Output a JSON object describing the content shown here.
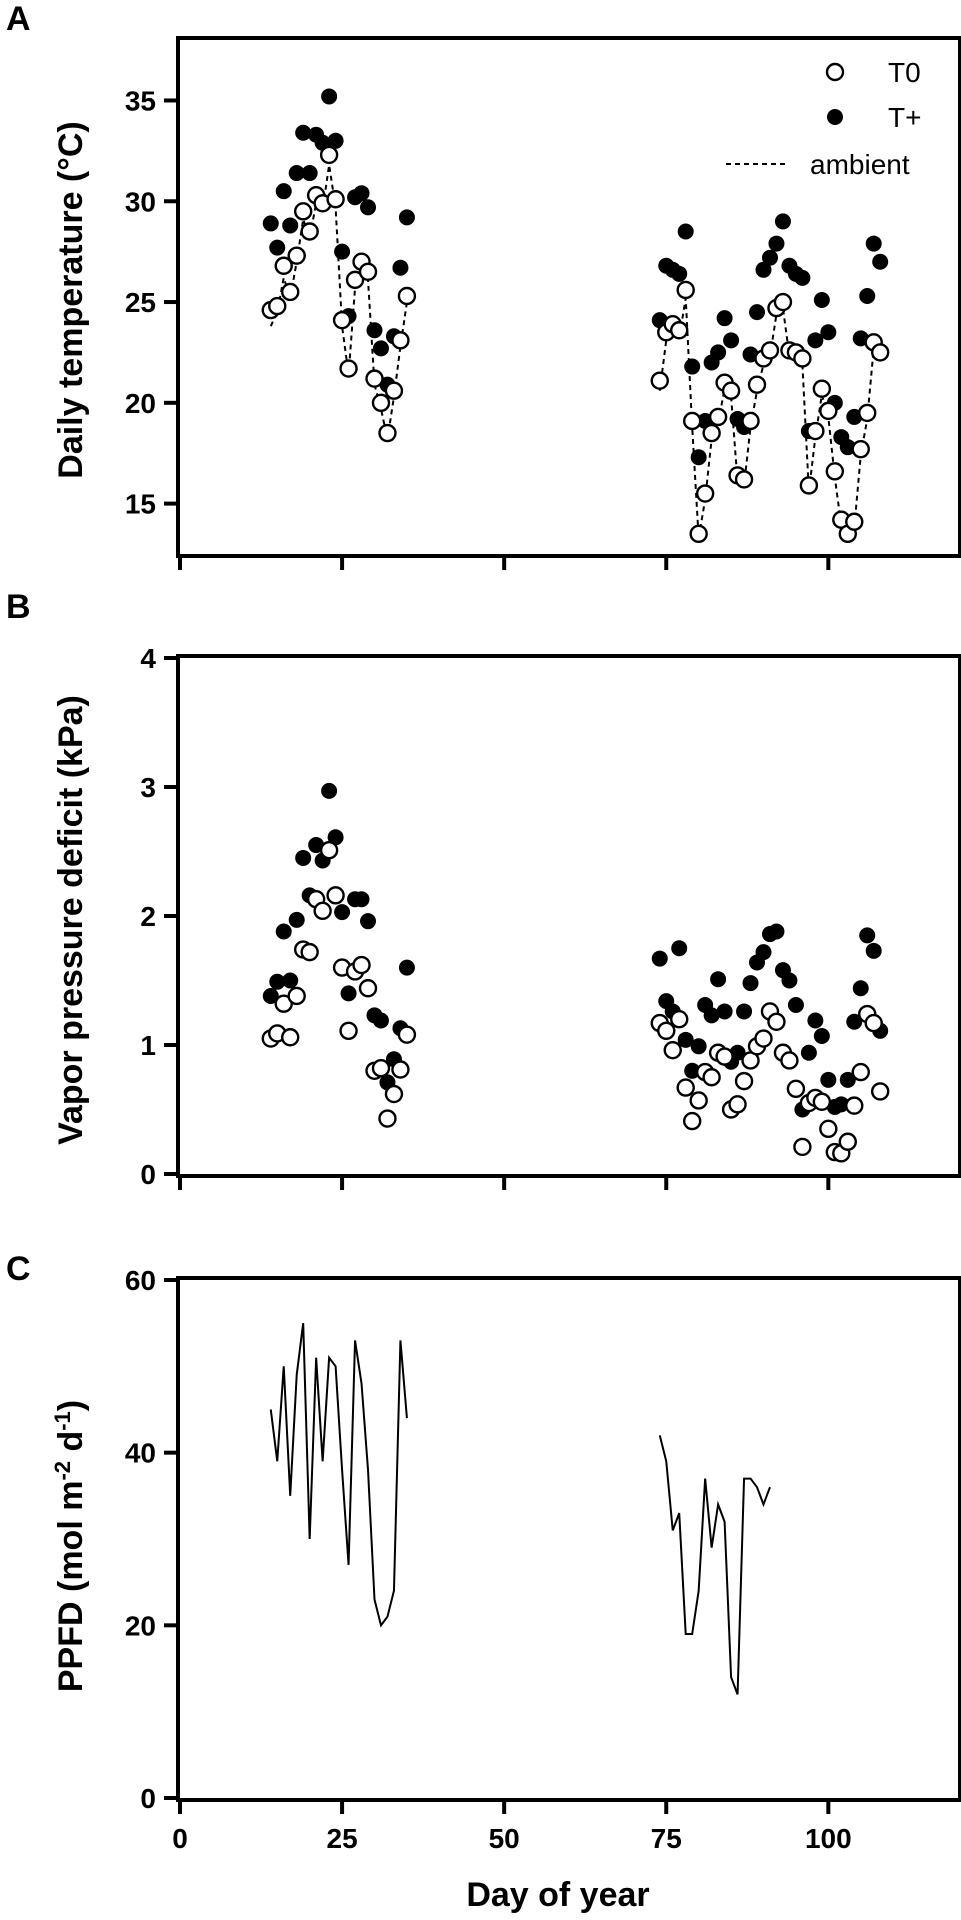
{
  "figure": {
    "xlabel": "Day of year",
    "x_ticks": [
      "0",
      "25",
      "50",
      "75",
      "100"
    ]
  },
  "chart_data": [
    {
      "panel": "A",
      "type": "scatter",
      "ylabel": "Daily temperature (°C)",
      "xlim": [
        0,
        120
      ],
      "ylim": [
        12.5,
        38
      ],
      "x_ticks": [
        0,
        25,
        50,
        75,
        100
      ],
      "y_ticks": [
        15,
        20,
        25,
        30,
        35
      ],
      "legend": {
        "position": "top-right",
        "entries": [
          "T0",
          "T+",
          "ambient"
        ]
      },
      "series": [
        {
          "name": "T0",
          "marker": "open-circle",
          "x": [
            14,
            15,
            16,
            17,
            18,
            19,
            20,
            21,
            22,
            23,
            24,
            25,
            26,
            27,
            28,
            29,
            30,
            31,
            32,
            33,
            34,
            35,
            74,
            75,
            76,
            77,
            78,
            79,
            80,
            81,
            82,
            83,
            84,
            85,
            86,
            87,
            88,
            89,
            90,
            91,
            92,
            93,
            94,
            95,
            96,
            97,
            98,
            99,
            100,
            101,
            102,
            103,
            104,
            105,
            106,
            107,
            108
          ],
          "y": [
            24.6,
            24.8,
            26.8,
            25.5,
            27.3,
            29.5,
            28.5,
            30.3,
            29.9,
            32.3,
            30.1,
            24.1,
            21.7,
            26.1,
            27.0,
            26.5,
            21.2,
            20.0,
            18.5,
            20.6,
            23.1,
            25.3,
            21.1,
            23.5,
            23.9,
            23.6,
            25.6,
            19.1,
            13.5,
            15.5,
            18.5,
            19.3,
            21.0,
            20.6,
            16.4,
            16.2,
            19.1,
            20.9,
            22.2,
            22.6,
            24.7,
            25.0,
            22.6,
            22.5,
            22.2,
            15.9,
            18.6,
            20.7,
            19.6,
            16.6,
            14.2,
            13.5,
            14.1,
            17.7,
            19.5,
            23.0,
            22.5
          ]
        },
        {
          "name": "T+",
          "marker": "filled-circle",
          "x": [
            14,
            15,
            16,
            17,
            18,
            19,
            20,
            21,
            22,
            23,
            24,
            25,
            26,
            27,
            28,
            29,
            30,
            31,
            32,
            33,
            34,
            35,
            74,
            75,
            76,
            77,
            78,
            79,
            80,
            81,
            82,
            83,
            84,
            85,
            86,
            87,
            88,
            89,
            90,
            91,
            92,
            93,
            94,
            95,
            96,
            97,
            98,
            99,
            100,
            101,
            102,
            103,
            104,
            105,
            106,
            107,
            108
          ],
          "y": [
            28.9,
            27.7,
            30.5,
            28.8,
            31.4,
            33.4,
            31.4,
            33.3,
            32.9,
            35.2,
            33.0,
            27.5,
            24.3,
            30.2,
            30.4,
            29.7,
            23.6,
            22.7,
            20.9,
            23.3,
            26.7,
            29.2,
            24.1,
            26.8,
            26.6,
            26.4,
            28.5,
            21.8,
            17.3,
            19.1,
            22.0,
            22.5,
            24.2,
            23.1,
            19.2,
            18.8,
            22.4,
            24.5,
            26.6,
            27.2,
            27.9,
            29.0,
            26.8,
            26.4,
            26.2,
            18.6,
            23.1,
            25.1,
            23.5,
            20.0,
            18.3,
            17.8,
            19.3,
            23.2,
            25.3,
            27.9,
            27.0
          ]
        },
        {
          "name": "ambient",
          "marker": "dashed-line",
          "x": [
            14,
            15,
            16,
            17,
            18,
            19,
            20,
            21,
            22,
            23,
            24,
            25,
            26,
            27,
            28,
            29,
            30,
            31,
            32,
            33,
            34,
            35,
            74,
            75,
            76,
            77,
            78,
            79,
            80,
            81,
            82,
            83,
            84,
            85,
            86,
            87,
            88,
            89,
            90,
            91,
            92,
            93,
            94,
            95,
            96,
            97,
            98,
            99,
            100,
            101,
            102,
            103,
            104,
            105,
            106,
            107,
            108
          ],
          "y": [
            23.8,
            24.5,
            26.2,
            25.2,
            27.0,
            29.1,
            28.2,
            29.9,
            29.6,
            31.8,
            29.7,
            23.8,
            21.4,
            25.7,
            26.6,
            26.1,
            20.9,
            19.7,
            18.2,
            20.3,
            22.8,
            25.0,
            20.6,
            23.1,
            23.5,
            23.2,
            25.2,
            18.8,
            13.3,
            15.2,
            18.2,
            19.0,
            20.7,
            20.3,
            16.1,
            15.9,
            18.8,
            20.6,
            21.9,
            22.3,
            24.4,
            24.7,
            22.3,
            22.2,
            21.9,
            15.6,
            18.3,
            20.4,
            19.3,
            16.3,
            13.9,
            13.2,
            13.8,
            17.4,
            19.2,
            22.7,
            22.2
          ]
        }
      ]
    },
    {
      "panel": "B",
      "type": "scatter",
      "ylabel": "Vapor pressure deficit (kPa)",
      "xlim": [
        0,
        120
      ],
      "ylim": [
        0,
        4
      ],
      "x_ticks": [
        0,
        25,
        50,
        75,
        100
      ],
      "y_ticks": [
        0,
        1,
        2,
        3,
        4
      ],
      "series": [
        {
          "name": "T0",
          "marker": "open-circle",
          "x": [
            14,
            15,
            16,
            17,
            18,
            19,
            20,
            21,
            22,
            23,
            24,
            25,
            26,
            27,
            28,
            29,
            30,
            31,
            32,
            33,
            34,
            35,
            74,
            75,
            76,
            77,
            78,
            79,
            80,
            81,
            82,
            83,
            84,
            85,
            86,
            87,
            88,
            89,
            90,
            91,
            92,
            93,
            94,
            95,
            96,
            97,
            98,
            99,
            100,
            101,
            102,
            103,
            104,
            105,
            106,
            107,
            108
          ],
          "y": [
            1.05,
            1.09,
            1.32,
            1.06,
            1.38,
            1.74,
            1.72,
            2.13,
            2.04,
            2.51,
            2.16,
            1.6,
            1.11,
            1.57,
            1.62,
            1.44,
            0.8,
            0.82,
            0.43,
            0.62,
            0.81,
            1.08,
            1.17,
            1.11,
            0.96,
            1.2,
            0.67,
            0.41,
            0.57,
            0.79,
            0.75,
            0.94,
            0.91,
            0.5,
            0.54,
            0.72,
            0.88,
            0.99,
            1.05,
            1.26,
            1.18,
            0.94,
            0.88,
            0.66,
            0.21,
            0.55,
            0.59,
            0.56,
            0.35,
            0.17,
            0.16,
            0.25,
            0.53,
            0.79,
            1.24,
            1.17,
            0.64
          ]
        },
        {
          "name": "T+",
          "marker": "filled-circle",
          "x": [
            14,
            15,
            16,
            17,
            18,
            19,
            20,
            21,
            22,
            23,
            24,
            25,
            26,
            27,
            28,
            29,
            30,
            31,
            32,
            33,
            34,
            35,
            74,
            75,
            76,
            77,
            78,
            79,
            80,
            81,
            82,
            83,
            84,
            85,
            86,
            87,
            88,
            89,
            90,
            91,
            92,
            93,
            94,
            95,
            96,
            97,
            98,
            99,
            100,
            101,
            102,
            103,
            104,
            105,
            106,
            107,
            108
          ],
          "y": [
            1.38,
            1.49,
            1.88,
            1.5,
            1.97,
            2.45,
            2.16,
            2.55,
            2.43,
            2.97,
            2.61,
            2.03,
            1.4,
            2.13,
            2.13,
            1.96,
            1.23,
            1.19,
            0.71,
            0.89,
            1.13,
            1.6,
            1.67,
            1.34,
            1.26,
            1.75,
            1.04,
            0.8,
            0.99,
            1.31,
            1.23,
            1.51,
            1.26,
            0.87,
            0.94,
            1.26,
            1.48,
            1.64,
            1.72,
            1.86,
            1.88,
            1.58,
            1.5,
            1.31,
            0.5,
            0.94,
            1.19,
            1.07,
            0.73,
            0.52,
            0.54,
            0.73,
            1.18,
            1.44,
            1.85,
            1.73,
            1.11
          ]
        }
      ]
    },
    {
      "panel": "C",
      "type": "line",
      "ylabel": "PPFD (mol m-2 d-1)",
      "ylabel_parts": [
        "PPFD (mol m",
        "-2",
        " d",
        "-1",
        ")"
      ],
      "xlim": [
        0,
        120
      ],
      "ylim": [
        0,
        60
      ],
      "x_ticks": [
        0,
        25,
        50,
        75,
        100
      ],
      "y_ticks": [
        0,
        20,
        40,
        60
      ],
      "series": [
        {
          "segments": [
            {
              "x": [
                14,
                15,
                16,
                17,
                18,
                19,
                20,
                21,
                22,
                23,
                24,
                25,
                26,
                27,
                28,
                29,
                30,
                31,
                32,
                33,
                34,
                35
              ],
              "y": [
                45,
                39,
                50,
                35,
                49,
                55,
                30,
                51,
                39,
                51,
                50,
                38,
                27,
                53,
                48,
                38,
                23,
                20,
                21,
                24,
                53,
                44
              ]
            },
            {
              "x": [
                74,
                75,
                76,
                77,
                78,
                79,
                80,
                81,
                82,
                83,
                84,
                85,
                86,
                87,
                88,
                89,
                90,
                91
              ],
              "y": [
                42,
                39,
                31,
                33,
                19,
                19,
                24,
                37,
                29,
                34,
                32,
                14,
                12,
                37,
                37,
                36,
                34,
                36
              ]
            }
          ]
        }
      ]
    }
  ]
}
